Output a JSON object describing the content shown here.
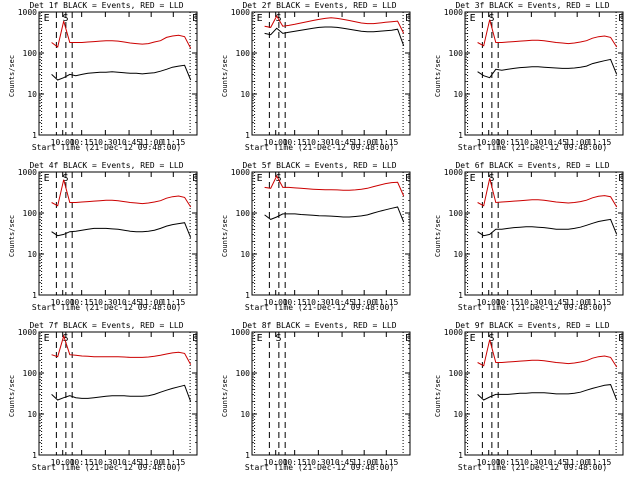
{
  "colors": {
    "events": "#000000",
    "lld": "#cc0000",
    "axis": "#000000"
  },
  "chart_data": [
    {
      "type": "line",
      "title": "Det 1f BLACK = Events, RED = LLD",
      "xlabel": "Start Time (21-Dec-12 09:48:00)",
      "ylabel": "Counts/sec",
      "xticks": [
        "10:00",
        "10:15",
        "10:30",
        "10:45",
        "11:00",
        "11:15"
      ],
      "yticks": [
        "1",
        "10",
        "100",
        "1000"
      ],
      "ylim": [
        1,
        1000
      ],
      "log_y": true,
      "markers": [
        "E",
        "S",
        "E"
      ],
      "series": [
        {
          "name": "Events",
          "values": [
            30,
            22,
            25,
            30,
            28,
            30,
            32,
            33,
            34,
            34,
            35,
            34,
            33,
            32,
            32,
            31,
            32,
            33,
            36,
            40,
            45,
            48,
            50,
            22
          ]
        },
        {
          "name": "LLD",
          "values": [
            180,
            140,
            600,
            180,
            180,
            180,
            185,
            190,
            195,
            200,
            200,
            195,
            185,
            175,
            170,
            165,
            170,
            185,
            200,
            240,
            260,
            270,
            250,
            130
          ]
        }
      ]
    },
    {
      "type": "line",
      "title": "Det 2f BLACK = Events, RED = LLD",
      "xlabel": "Start Time (21-Dec-12 09:48:00)",
      "ylabel": "Counts/sec",
      "xticks": [
        "10:00",
        "10:15",
        "10:30",
        "10:45",
        "11:00",
        "11:15"
      ],
      "yticks": [
        "1",
        "10",
        "100",
        "1000"
      ],
      "ylim": [
        1,
        1000
      ],
      "log_y": true,
      "markers": [
        "E",
        "S",
        "E"
      ],
      "series": [
        {
          "name": "Events",
          "values": [
            300,
            280,
            400,
            300,
            320,
            340,
            360,
            380,
            400,
            420,
            430,
            430,
            420,
            400,
            380,
            360,
            340,
            330,
            330,
            340,
            350,
            360,
            380,
            150
          ]
        },
        {
          "name": "LLD",
          "values": [
            450,
            420,
            800,
            450,
            470,
            500,
            540,
            580,
            620,
            660,
            700,
            720,
            700,
            660,
            620,
            580,
            540,
            520,
            520,
            540,
            560,
            580,
            600,
            300
          ]
        }
      ]
    },
    {
      "type": "line",
      "title": "Det 3f BLACK = Events, RED = LLD",
      "xlabel": "Start Time (21-Dec-12 09:48:00)",
      "ylabel": "Counts/sec",
      "xticks": [
        "10:00",
        "10:15",
        "10:30",
        "10:45",
        "11:00",
        "11:15"
      ],
      "yticks": [
        "1",
        "10",
        "100",
        "1000"
      ],
      "ylim": [
        1,
        1000
      ],
      "log_y": true,
      "markers": [
        "E",
        "S",
        "E"
      ],
      "series": [
        {
          "name": "Events",
          "values": [
            35,
            28,
            25,
            40,
            38,
            40,
            42,
            44,
            45,
            46,
            46,
            45,
            44,
            43,
            42,
            42,
            43,
            45,
            48,
            55,
            60,
            65,
            70,
            30
          ]
        },
        {
          "name": "LLD",
          "values": [
            180,
            150,
            650,
            180,
            180,
            185,
            190,
            195,
            200,
            205,
            205,
            200,
            190,
            180,
            175,
            170,
            175,
            185,
            200,
            230,
            250,
            260,
            240,
            140
          ]
        }
      ]
    },
    {
      "type": "line",
      "title": "Det 4f BLACK = Events, RED = LLD",
      "xlabel": "Start Time (21-Dec-12 09:48:00)",
      "ylabel": "Counts/sec",
      "xticks": [
        "10:00",
        "10:15",
        "10:30",
        "10:45",
        "11:00",
        "11:15"
      ],
      "yticks": [
        "1",
        "10",
        "100",
        "1000"
      ],
      "ylim": [
        1,
        1000
      ],
      "log_y": true,
      "markers": [
        "E",
        "S",
        "E"
      ],
      "series": [
        {
          "name": "Events",
          "values": [
            35,
            28,
            30,
            35,
            36,
            38,
            40,
            42,
            42,
            42,
            41,
            40,
            38,
            36,
            35,
            35,
            36,
            38,
            42,
            48,
            52,
            55,
            58,
            25
          ]
        },
        {
          "name": "LLD",
          "values": [
            180,
            150,
            650,
            180,
            180,
            185,
            190,
            195,
            200,
            205,
            205,
            200,
            190,
            180,
            175,
            170,
            175,
            185,
            200,
            230,
            250,
            260,
            240,
            140
          ]
        }
      ]
    },
    {
      "type": "line",
      "title": "Det 5f BLACK = Events, RED = LLD",
      "xlabel": "Start Time (21-Dec-12 09:48:00)",
      "ylabel": "Counts/sec",
      "xticks": [
        "10:00",
        "10:15",
        "10:30",
        "10:45",
        "11:00",
        "11:15"
      ],
      "yticks": [
        "1",
        "10",
        "100",
        "1000"
      ],
      "ylim": [
        1,
        1000
      ],
      "log_y": true,
      "markers": [
        "E",
        "S",
        "E"
      ],
      "series": [
        {
          "name": "Events",
          "values": [
            90,
            70,
            80,
            95,
            95,
            95,
            92,
            90,
            88,
            86,
            85,
            84,
            82,
            80,
            80,
            82,
            85,
            90,
            100,
            110,
            120,
            130,
            140,
            60
          ]
        },
        {
          "name": "LLD",
          "values": [
            420,
            400,
            800,
            420,
            420,
            410,
            400,
            390,
            380,
            375,
            370,
            370,
            365,
            360,
            360,
            365,
            380,
            400,
            440,
            480,
            520,
            550,
            560,
            260
          ]
        }
      ]
    },
    {
      "type": "line",
      "title": "Det 6f BLACK = Events, RED = LLD",
      "xlabel": "Start Time (21-Dec-12 09:48:00)",
      "ylabel": "Counts/sec",
      "xticks": [
        "10:00",
        "10:15",
        "10:30",
        "10:45",
        "11:00",
        "11:15"
      ],
      "yticks": [
        "1",
        "10",
        "100",
        "1000"
      ],
      "ylim": [
        1,
        1000
      ],
      "log_y": true,
      "markers": [
        "E",
        "S",
        "E"
      ],
      "series": [
        {
          "name": "Events",
          "values": [
            35,
            28,
            30,
            40,
            40,
            42,
            44,
            45,
            46,
            46,
            45,
            44,
            42,
            40,
            40,
            40,
            42,
            45,
            50,
            56,
            62,
            66,
            70,
            30
          ]
        },
        {
          "name": "LLD",
          "values": [
            180,
            150,
            700,
            180,
            185,
            190,
            195,
            200,
            205,
            210,
            210,
            205,
            195,
            185,
            180,
            175,
            180,
            190,
            205,
            235,
            255,
            265,
            250,
            140
          ]
        }
      ]
    },
    {
      "type": "line",
      "title": "Det 7f BLACK = Events, RED = LLD",
      "xlabel": "Start Time (21-Dec-12 09:48:00)",
      "ylabel": "Counts/sec",
      "xticks": [
        "10:00",
        "10:15",
        "10:30",
        "10:45",
        "11:00",
        "11:15"
      ],
      "yticks": [
        "1",
        "10",
        "100",
        "1000"
      ],
      "ylim": [
        1,
        1000
      ],
      "log_y": true,
      "markers": [
        "E",
        "S",
        "E"
      ],
      "series": [
        {
          "name": "Events",
          "values": [
            30,
            22,
            25,
            28,
            25,
            24,
            24,
            25,
            26,
            27,
            28,
            28,
            28,
            27,
            27,
            27,
            28,
            30,
            34,
            38,
            42,
            46,
            50,
            20
          ]
        },
        {
          "name": "LLD",
          "values": [
            280,
            250,
            800,
            280,
            270,
            260,
            255,
            250,
            250,
            250,
            250,
            250,
            245,
            240,
            240,
            240,
            245,
            255,
            270,
            290,
            310,
            320,
            300,
            160
          ]
        }
      ]
    },
    {
      "type": "line",
      "title": "Det 8f BLACK = Events, RED = LLD",
      "xlabel": "Start Time (21-Dec-12 09:48:00)",
      "ylabel": "Counts/sec",
      "xticks": [
        "10:00",
        "10:15",
        "10:30",
        "10:45",
        "11:00",
        "11:15"
      ],
      "yticks": [
        "1",
        "10",
        "100",
        "1000"
      ],
      "ylim": [
        1,
        1000
      ],
      "log_y": true,
      "markers": [
        "E",
        "S",
        "E"
      ],
      "series": [
        {
          "name": "Events",
          "values": []
        },
        {
          "name": "LLD",
          "values": []
        }
      ]
    },
    {
      "type": "line",
      "title": "Det 9f BLACK = Events, RED = LLD",
      "xlabel": "Start Time (21-Dec-12 09:48:00)",
      "ylabel": "Counts/sec",
      "xticks": [
        "10:00",
        "10:15",
        "10:30",
        "10:45",
        "11:00",
        "11:15"
      ],
      "yticks": [
        "1",
        "10",
        "100",
        "1000"
      ],
      "ylim": [
        1,
        1000
      ],
      "log_y": true,
      "markers": [
        "E",
        "S",
        "E"
      ],
      "series": [
        {
          "name": "Events",
          "values": [
            30,
            22,
            26,
            30,
            30,
            30,
            31,
            32,
            32,
            33,
            33,
            33,
            32,
            31,
            31,
            31,
            32,
            34,
            38,
            42,
            46,
            50,
            52,
            22
          ]
        },
        {
          "name": "LLD",
          "values": [
            180,
            150,
            650,
            180,
            180,
            185,
            190,
            195,
            200,
            205,
            205,
            200,
            190,
            180,
            175,
            170,
            175,
            185,
            200,
            230,
            250,
            260,
            240,
            140
          ]
        }
      ]
    }
  ]
}
